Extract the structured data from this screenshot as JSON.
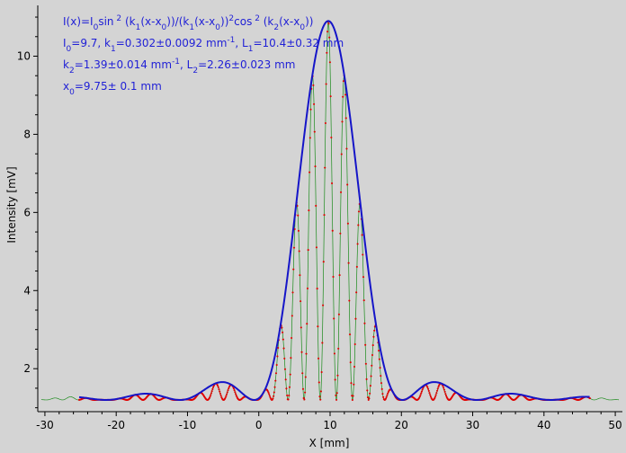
{
  "chart_data": {
    "type": "line",
    "xlabel": "X [mm]",
    "ylabel": "Intensity [mV]",
    "xlim": [
      -31,
      51
    ],
    "ylim": [
      0.9,
      11.3
    ],
    "x_ticks": [
      -30,
      -20,
      -10,
      0,
      10,
      20,
      30,
      40,
      50
    ],
    "y_ticks": [
      2,
      4,
      6,
      8,
      10
    ],
    "grid": false,
    "legend": "none",
    "model": {
      "I0": 9.7,
      "k1": 0.302,
      "k2": 1.39,
      "x0": 9.75,
      "offset": 1.2
    },
    "annotations": {
      "line1": {
        "prefix": "I(x)=I",
        "sub0": "0",
        "mid1": "sin",
        "sup1": " 2",
        "mid2": " (k",
        "sub1": "1",
        "mid3": "(x-x",
        "sub2": "0",
        "mid4": "))/(k",
        "sub3": "1",
        "mid5": "(x-x",
        "sub4": "0",
        "mid6": "))",
        "sup2": "2",
        "mid7": "cos",
        "sup3": " 2",
        "mid8": " (k",
        "sub5": "2",
        "mid9": "(x-x",
        "sub6": "0",
        "end": "))"
      },
      "line2": {
        "a": "I",
        "a_sub": "0",
        "b": "=9.7,  k",
        "b_sub": "1",
        "c": "=0.302±0.0092 mm",
        "c_sup": "-1",
        "d": ",   L",
        "d_sub": "1",
        "e": "=10.4±0.32 mm"
      },
      "line3": {
        "a": "k",
        "a_sub": "2",
        "b": "=1.39±0.014 mm",
        "b_sup": "-1",
        "c": ",   L",
        "c_sub": "2",
        "d": "=2.26±0.023 mm"
      },
      "line4": {
        "a": "x",
        "a_sub": "0",
        "b": "=9.75±  0.1 mm"
      }
    },
    "series": [
      {
        "color": "#e00000",
        "style": "dots"
      },
      {
        "color": "#1a8a1a",
        "style": "thin-line"
      },
      {
        "color": "#1515c8",
        "style": "envelope-line"
      }
    ]
  }
}
